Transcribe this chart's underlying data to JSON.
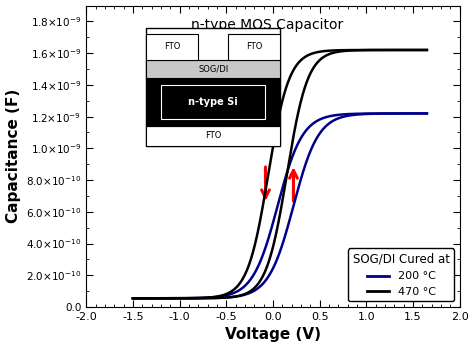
{
  "title": "n-type MOS Capacitor",
  "xlabel": "Voltage (V)",
  "ylabel": "Capacitance (F)",
  "xlim": [
    -2.0,
    2.0
  ],
  "ylim": [
    0.0,
    1.9e-09
  ],
  "xticks": [
    -2.0,
    -1.5,
    -1.0,
    -0.5,
    0.0,
    0.5,
    1.0,
    1.5,
    2.0
  ],
  "yticks": [
    0.0,
    2e-10,
    4e-10,
    6e-10,
    8e-10,
    1e-09,
    1.2e-09,
    1.4e-09,
    1.6e-09,
    1.8e-09
  ],
  "color_200": "#00008B",
  "color_470": "#000000",
  "legend_title": "SOG/DI Cured at",
  "legend_200": "200 °C",
  "legend_470": "470 °C",
  "c_min": 5.5e-11,
  "c_max_200": 1.22e-09,
  "c_max_470": 1.62e-09,
  "vt_f470": -0.05,
  "vt_b470": 0.15,
  "vt_f200": 0.05,
  "vt_b200": 0.22,
  "steepness_470": 9.0,
  "steepness_200": 7.5,
  "background_color": "#ffffff"
}
